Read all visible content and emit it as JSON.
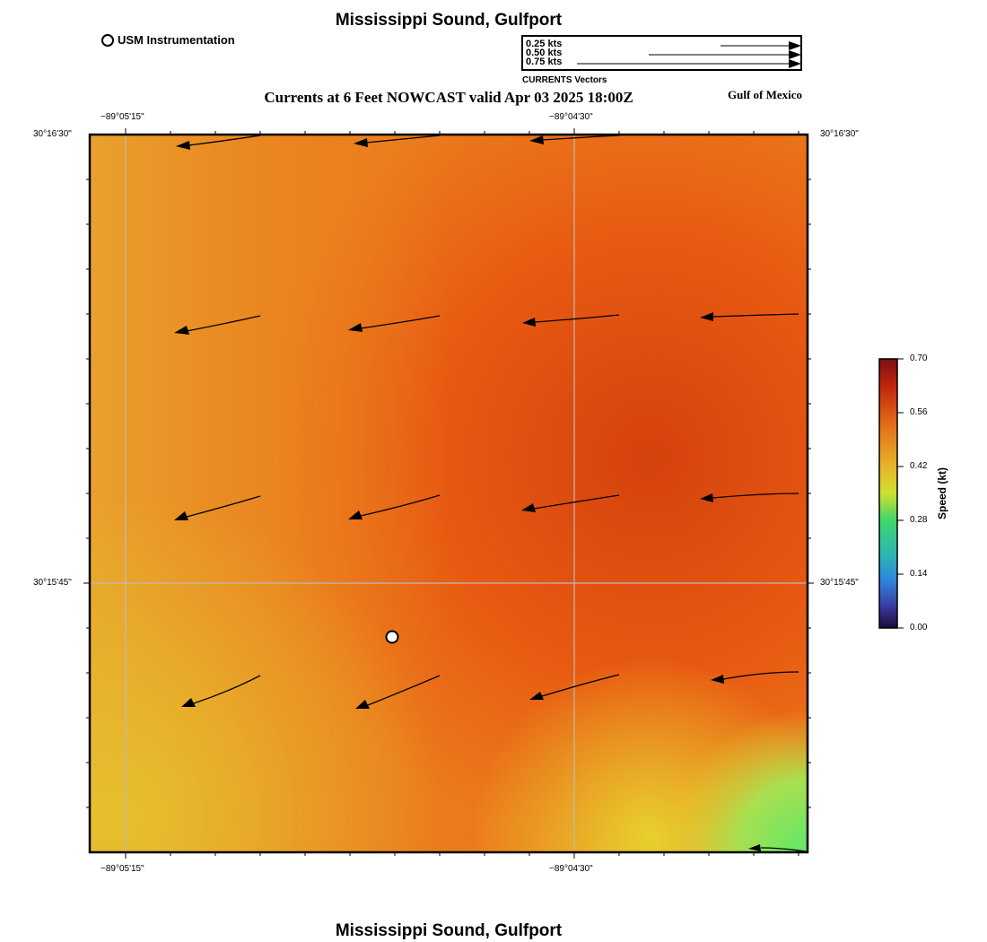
{
  "header": {
    "title": "Mississippi Sound, Gulfport",
    "subtitle": "Currents at 6 Feet NOWCAST valid Apr 03 2025 18:00Z",
    "region_label": "Gulf of Mexico",
    "footer_title": "Mississippi Sound, Gulfport"
  },
  "station_legend": {
    "label": "USM Instrumentation"
  },
  "vector_legend": {
    "title": "CURRENTS Vectors",
    "entries": [
      {
        "label": "0.25 kts",
        "value": 0.25
      },
      {
        "label": "0.50 kts",
        "value": 0.5
      },
      {
        "label": "0.75 kts",
        "value": 0.75
      }
    ]
  },
  "map": {
    "top_lon_labels": [
      "−89°05'15\"",
      "−89°04'30\""
    ],
    "bottom_lon_labels": [
      "−89°05'15\"",
      "−89°04'30\""
    ],
    "left_lat_labels": [
      "30°16'30\"",
      "30°15'45\""
    ],
    "right_lat_labels": [
      "30°16'30\"",
      "30°15'45\""
    ]
  },
  "colorbar": {
    "label": "Speed (kt)",
    "ticks": [
      "0.70",
      "0.56",
      "0.42",
      "0.28",
      "0.14",
      "0.00"
    ],
    "colors": {
      "top": "#7a1010",
      "high": "#d4420c",
      "mid_high": "#e8a628",
      "mid": "#e6d22a",
      "mid_low": "#3fd66a",
      "low": "#2f86e0",
      "bottom": "#1a0a3a"
    }
  },
  "field_colors": {
    "orange_light": "#ea9a2a",
    "orange": "#ee6a18",
    "red_orange": "#d9460f",
    "yellow": "#e3c22e",
    "green": "#6fe060"
  }
}
